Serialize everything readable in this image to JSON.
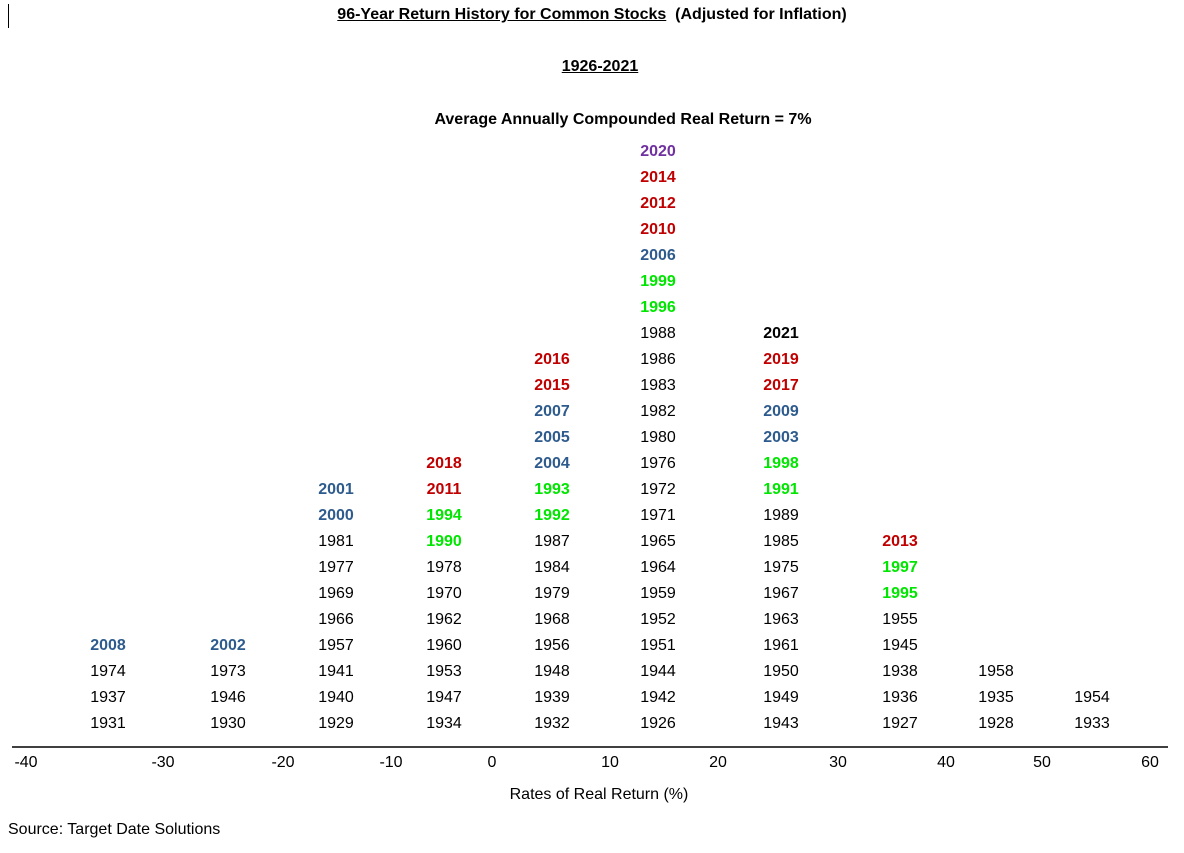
{
  "title": {
    "main": "96-Year Return History for Common Stocks",
    "suffix": "(Adjusted for Inflation)",
    "period": "1926-2021",
    "average": "Average Annually Compounded Real Return = 7%"
  },
  "colors": {
    "black": "#000000",
    "red": "#c00000",
    "blue": "#2e5b8d",
    "green": "#00e600",
    "purple": "#7030a0"
  },
  "chart_data": {
    "type": "histogram",
    "xlabel": "Rates of Real Return (%)",
    "xlim": [
      -40,
      60
    ],
    "x_ticks": [
      -40,
      -30,
      -20,
      -10,
      0,
      10,
      20,
      30,
      40,
      50,
      60
    ],
    "bins": [
      {
        "center": -35,
        "years": [
          {
            "year": "1931",
            "color": "black"
          },
          {
            "year": "1937",
            "color": "black"
          },
          {
            "year": "1974",
            "color": "black"
          },
          {
            "year": "2008",
            "color": "blue"
          }
        ]
      },
      {
        "center": -25,
        "years": [
          {
            "year": "1930",
            "color": "black"
          },
          {
            "year": "1946",
            "color": "black"
          },
          {
            "year": "1973",
            "color": "black"
          },
          {
            "year": "2002",
            "color": "blue"
          }
        ]
      },
      {
        "center": -15,
        "years": [
          {
            "year": "1929",
            "color": "black"
          },
          {
            "year": "1940",
            "color": "black"
          },
          {
            "year": "1941",
            "color": "black"
          },
          {
            "year": "1957",
            "color": "black"
          },
          {
            "year": "1966",
            "color": "black"
          },
          {
            "year": "1969",
            "color": "black"
          },
          {
            "year": "1977",
            "color": "black"
          },
          {
            "year": "1981",
            "color": "black"
          },
          {
            "year": "2000",
            "color": "blue"
          },
          {
            "year": "2001",
            "color": "blue"
          }
        ]
      },
      {
        "center": -5,
        "years": [
          {
            "year": "1934",
            "color": "black"
          },
          {
            "year": "1947",
            "color": "black"
          },
          {
            "year": "1953",
            "color": "black"
          },
          {
            "year": "1960",
            "color": "black"
          },
          {
            "year": "1962",
            "color": "black"
          },
          {
            "year": "1970",
            "color": "black"
          },
          {
            "year": "1978",
            "color": "black"
          },
          {
            "year": "1990",
            "color": "green"
          },
          {
            "year": "1994",
            "color": "green"
          },
          {
            "year": "2011",
            "color": "red"
          },
          {
            "year": "2018",
            "color": "red"
          }
        ]
      },
      {
        "center": 5,
        "years": [
          {
            "year": "1932",
            "color": "black"
          },
          {
            "year": "1939",
            "color": "black"
          },
          {
            "year": "1948",
            "color": "black"
          },
          {
            "year": "1956",
            "color": "black"
          },
          {
            "year": "1968",
            "color": "black"
          },
          {
            "year": "1979",
            "color": "black"
          },
          {
            "year": "1984",
            "color": "black"
          },
          {
            "year": "1987",
            "color": "black"
          },
          {
            "year": "1992",
            "color": "green"
          },
          {
            "year": "1993",
            "color": "green"
          },
          {
            "year": "2004",
            "color": "blue"
          },
          {
            "year": "2005",
            "color": "blue"
          },
          {
            "year": "2007",
            "color": "blue"
          },
          {
            "year": "2015",
            "color": "red"
          },
          {
            "year": "2016",
            "color": "red"
          }
        ]
      },
      {
        "center": 15,
        "years": [
          {
            "year": "1926",
            "color": "black"
          },
          {
            "year": "1942",
            "color": "black"
          },
          {
            "year": "1944",
            "color": "black"
          },
          {
            "year": "1951",
            "color": "black"
          },
          {
            "year": "1952",
            "color": "black"
          },
          {
            "year": "1959",
            "color": "black"
          },
          {
            "year": "1964",
            "color": "black"
          },
          {
            "year": "1965",
            "color": "black"
          },
          {
            "year": "1971",
            "color": "black"
          },
          {
            "year": "1972",
            "color": "black"
          },
          {
            "year": "1976",
            "color": "black"
          },
          {
            "year": "1980",
            "color": "black"
          },
          {
            "year": "1982",
            "color": "black"
          },
          {
            "year": "1983",
            "color": "black"
          },
          {
            "year": "1986",
            "color": "black"
          },
          {
            "year": "1988",
            "color": "black"
          },
          {
            "year": "1996",
            "color": "green"
          },
          {
            "year": "1999",
            "color": "green"
          },
          {
            "year": "2006",
            "color": "blue"
          },
          {
            "year": "2010",
            "color": "red"
          },
          {
            "year": "2012",
            "color": "red"
          },
          {
            "year": "2014",
            "color": "red"
          },
          {
            "year": "2020",
            "color": "purple"
          }
        ]
      },
      {
        "center": 25,
        "years": [
          {
            "year": "1943",
            "color": "black"
          },
          {
            "year": "1949",
            "color": "black"
          },
          {
            "year": "1950",
            "color": "black"
          },
          {
            "year": "1961",
            "color": "black"
          },
          {
            "year": "1963",
            "color": "black"
          },
          {
            "year": "1967",
            "color": "black"
          },
          {
            "year": "1975",
            "color": "black"
          },
          {
            "year": "1985",
            "color": "black"
          },
          {
            "year": "1989",
            "color": "black"
          },
          {
            "year": "1991",
            "color": "green"
          },
          {
            "year": "1998",
            "color": "green"
          },
          {
            "year": "2003",
            "color": "blue"
          },
          {
            "year": "2009",
            "color": "blue"
          },
          {
            "year": "2017",
            "color": "red"
          },
          {
            "year": "2019",
            "color": "red"
          },
          {
            "year": "2021",
            "color": "black",
            "emphasis": "large-bold"
          }
        ]
      },
      {
        "center": 35,
        "years": [
          {
            "year": "1927",
            "color": "black"
          },
          {
            "year": "1936",
            "color": "black"
          },
          {
            "year": "1938",
            "color": "black"
          },
          {
            "year": "1945",
            "color": "black"
          },
          {
            "year": "1955",
            "color": "black"
          },
          {
            "year": "1995",
            "color": "green"
          },
          {
            "year": "1997",
            "color": "green"
          },
          {
            "year": "2013",
            "color": "red"
          }
        ]
      },
      {
        "center": 45,
        "years": [
          {
            "year": "1928",
            "color": "black"
          },
          {
            "year": "1935",
            "color": "black"
          },
          {
            "year": "1958",
            "color": "black"
          }
        ]
      },
      {
        "center": 55,
        "years": [
          {
            "year": "1933",
            "color": "black"
          },
          {
            "year": "1954",
            "color": "black"
          }
        ]
      }
    ]
  },
  "source": "Source: Target Date Solutions"
}
